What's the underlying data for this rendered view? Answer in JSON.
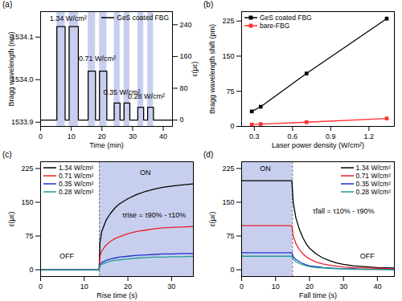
{
  "chart_data": [
    {
      "type": "line",
      "title": "(a)",
      "x_label": "Time (min)",
      "y_label": "Bragg wavelength (nm)",
      "y2_label": "ε(με)",
      "xlim": [
        0,
        43
      ],
      "xticks": [
        0,
        10,
        20,
        30,
        40
      ],
      "ylim": [
        1533.89,
        1534.16
      ],
      "yticks": [
        1533.9,
        {
          "value": 1534,
          "label": "1534.0"
        },
        1534.1
      ],
      "y2lim": [
        -16,
        273
      ],
      "y2ticks": [
        0,
        80,
        160,
        240
      ],
      "legend": "top-right",
      "grid": false,
      "on_intervals": [
        [
          5.3,
          8
        ],
        [
          9.3,
          12.3
        ],
        [
          15.5,
          17.9
        ],
        [
          19.2,
          21.6
        ],
        [
          24,
          25.9
        ],
        [
          27.2,
          29.1
        ],
        [
          31.7,
          33.6
        ],
        [
          34.9,
          36.8
        ]
      ],
      "annotations": [
        {
          "text": "1.34 W/cm²",
          "x": 9,
          "y": 1534.143
        },
        {
          "text": "0.71 W/cm²",
          "x": 18.5,
          "y": 1534.05
        },
        {
          "text": "0.35 W/cm²",
          "x": 26.5,
          "y": 1533.97
        },
        {
          "text": "0.28 W/cm²",
          "x": 34.5,
          "y": 1533.96
        }
      ],
      "series": [
        {
          "name": "GeS coated FBG",
          "color": "#000000",
          "x": [
            0,
            5.3,
            5.3,
            8,
            8,
            9.3,
            9.3,
            12.3,
            12.3,
            15.5,
            15.5,
            17.9,
            17.9,
            19.2,
            19.2,
            21.6,
            21.6,
            24,
            24,
            25.9,
            25.9,
            27.2,
            27.2,
            29.1,
            29.1,
            31.7,
            31.7,
            33.6,
            33.6,
            34.9,
            34.9,
            36.8,
            36.8,
            43
          ],
          "values": [
            1533.905,
            1533.905,
            1534.125,
            1534.125,
            1533.905,
            1533.905,
            1534.125,
            1534.125,
            1533.905,
            1533.905,
            1534.02,
            1534.02,
            1533.905,
            1533.905,
            1534.02,
            1534.02,
            1533.905,
            1533.905,
            1533.945,
            1533.945,
            1533.905,
            1533.905,
            1533.945,
            1533.945,
            1533.905,
            1533.905,
            1533.935,
            1533.935,
            1533.905,
            1533.905,
            1533.935,
            1533.935,
            1533.905,
            1533.905
          ]
        }
      ]
    },
    {
      "type": "line",
      "title": "(b)",
      "x_label": "Laser power density (W/cm²)",
      "y_label": "Bragg wavelength shift (pm)",
      "xlim": [
        0.2,
        1.4
      ],
      "xticks": [
        0.3,
        0.6,
        0.9,
        1.2
      ],
      "ylim": [
        0,
        245
      ],
      "yticks": [
        0,
        75,
        150,
        225
      ],
      "legend": "top-left",
      "grid": false,
      "x": [
        0.28,
        0.35,
        0.71,
        1.34
      ],
      "series": [
        {
          "name": "GeS coated FBG",
          "color": "#000000",
          "marker": "square",
          "values": [
            32,
            42,
            113,
            230
          ],
          "errors": [
            2,
            2,
            2,
            4
          ]
        },
        {
          "name": "bare-FBG",
          "color": "#ff3030",
          "marker": "square",
          "values": [
            4,
            5,
            9,
            17
          ],
          "errors": [
            1,
            1,
            1,
            1
          ]
        }
      ]
    },
    {
      "type": "line",
      "title": "(c)",
      "x_label": "Rise time (s)",
      "y_label": "ε(με)",
      "xlim": [
        0,
        35
      ],
      "xticks": [
        0,
        10,
        20,
        30
      ],
      "ylim": [
        -15,
        240
      ],
      "yticks": [
        0,
        75,
        150,
        225
      ],
      "legend": "top-left",
      "grid": false,
      "on_intervals": [
        [
          13.5,
          35
        ]
      ],
      "annotations": [
        {
          "text": "OFF",
          "x": 6,
          "y": 30
        },
        {
          "text": "ON",
          "x": 24,
          "y": 215
        },
        {
          "text": "τrise = τ90% - τ10%",
          "x": 26,
          "y": 122
        }
      ],
      "x": [
        0,
        3,
        6,
        9,
        12,
        13.4,
        13.6,
        14,
        15,
        16,
        17,
        18,
        20,
        22,
        24,
        26,
        28,
        30,
        32,
        35
      ],
      "series": [
        {
          "name": "1.34 W/cm²",
          "color": "#000000",
          "values": [
            0,
            0,
            0,
            0,
            0,
            0,
            60,
            85,
            110,
            125,
            137,
            146,
            158,
            167,
            174,
            179,
            183,
            186,
            188,
            191
          ]
        },
        {
          "name": "0.71 W/cm²",
          "color": "#e8202a",
          "values": [
            0,
            0,
            0,
            0,
            0,
            0,
            30,
            42,
            55,
            63,
            69,
            73,
            80,
            85,
            88,
            91,
            93,
            94,
            95,
            96
          ]
        },
        {
          "name": "0.35 W/cm²",
          "color": "#1f2fd1",
          "values": [
            0,
            0,
            0,
            0,
            0,
            0,
            12,
            16,
            21,
            24,
            26,
            28,
            30,
            32,
            33,
            34,
            35,
            35,
            36,
            36
          ]
        },
        {
          "name": "0.28 W/cm²",
          "color": "#219e8a",
          "values": [
            0,
            0,
            0,
            0,
            0,
            0,
            9,
            12,
            16,
            19,
            21,
            22,
            24,
            26,
            27,
            28,
            28,
            29,
            29,
            30
          ]
        }
      ]
    },
    {
      "type": "line",
      "title": "(d)",
      "x_label": "Fall time (s)",
      "y_label": "ε(με)",
      "xlim": [
        0,
        45
      ],
      "xticks": [
        0,
        10,
        20,
        30,
        40
      ],
      "ylim": [
        -15,
        240
      ],
      "yticks": [
        0,
        75,
        150,
        225
      ],
      "legend": "top-right",
      "grid": false,
      "on_intervals": [
        [
          0,
          15
        ]
      ],
      "annotations": [
        {
          "text": "ON",
          "x": 7,
          "y": 225
        },
        {
          "text": "OFF",
          "x": 37,
          "y": 30
        },
        {
          "text": "τfall = τ10% - τ90%",
          "x": 30,
          "y": 130
        }
      ],
      "x": [
        0,
        5,
        10,
        14.8,
        15.2,
        16,
        17,
        18,
        19,
        20,
        22,
        24,
        26,
        28,
        30,
        33,
        36,
        40,
        45
      ],
      "series": [
        {
          "name": "1.34 W/cm²",
          "color": "#000000",
          "values": [
            198,
            198,
            198,
            198,
            150,
            115,
            90,
            72,
            58,
            48,
            35,
            26,
            20,
            15,
            12,
            9,
            7,
            5,
            4
          ]
        },
        {
          "name": "0.71 W/cm²",
          "color": "#e8202a",
          "values": [
            98,
            98,
            98,
            98,
            75,
            58,
            45,
            36,
            29,
            24,
            17,
            13,
            10,
            8,
            6,
            5,
            4,
            3,
            2
          ]
        },
        {
          "name": "0.35 W/cm²",
          "color": "#1f2fd1",
          "values": [
            38,
            38,
            38,
            38,
            29,
            23,
            18,
            14,
            11,
            9,
            7,
            5,
            4,
            3,
            2,
            2,
            1,
            1,
            1
          ]
        },
        {
          "name": "0.28 W/cm²",
          "color": "#219e8a",
          "values": [
            30,
            30,
            30,
            30,
            23,
            18,
            14,
            11,
            9,
            7,
            5,
            4,
            3,
            2,
            2,
            1,
            1,
            1,
            0
          ]
        }
      ]
    }
  ]
}
